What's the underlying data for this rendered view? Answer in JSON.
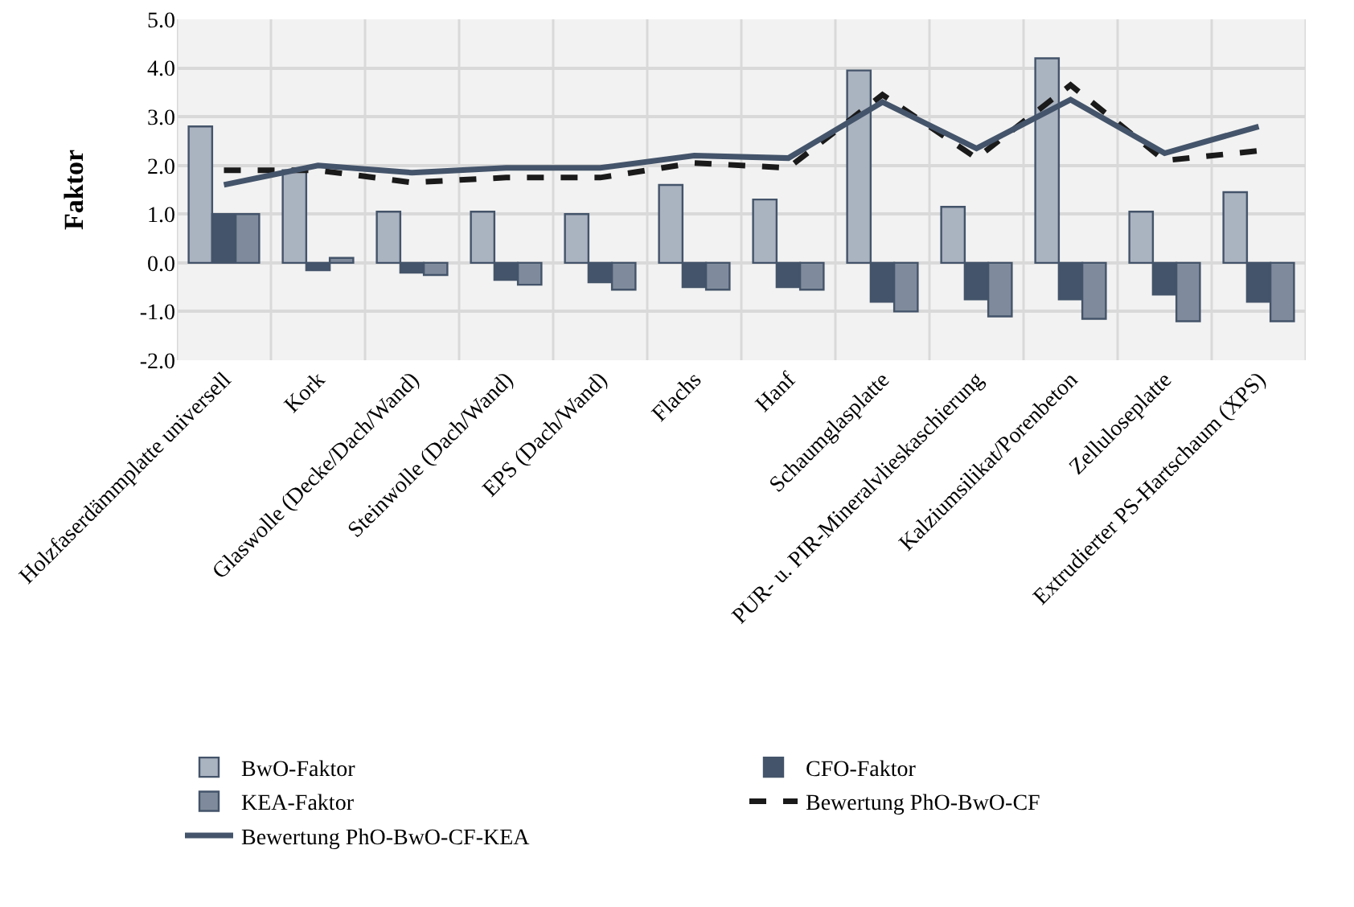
{
  "chart_data": {
    "type": "bar",
    "ylabel": "Faktor",
    "categories": [
      "Holzfaserdämmplatte universell",
      "Kork",
      "Glaswolle (Decke/Dach/Wand)",
      "Steinwolle (Dach/Wand)",
      "EPS (Dach/Wand)",
      "Flachs",
      "Hanf",
      "Schaumglasplatte",
      "PUR- u. PIR-Mineralvlieskaschierung",
      "Kalziumsilikat/Porenbeton",
      "Zelluloseplatte",
      "Extrudierter PS-Hartschaum (XPS)"
    ],
    "series": [
      {
        "name": "BwO-Faktor",
        "color": "#aab3c0",
        "values": [
          2.8,
          1.9,
          1.05,
          1.05,
          1.0,
          1.6,
          1.3,
          3.95,
          1.15,
          4.2,
          1.05,
          1.45
        ]
      },
      {
        "name": "CFO-Faktor",
        "color": "#44546a",
        "values": [
          1.0,
          -0.15,
          -0.2,
          -0.35,
          -0.4,
          -0.5,
          -0.5,
          -0.8,
          -0.75,
          -0.75,
          -0.65,
          -0.8
        ]
      },
      {
        "name": "KEA-Faktor",
        "color": "#7f8b9c",
        "values": [
          1.0,
          0.1,
          -0.25,
          -0.45,
          -0.55,
          -0.55,
          -0.55,
          -1.0,
          -1.1,
          -1.15,
          -1.2,
          -1.2
        ]
      },
      {
        "name": "Bewertung PhO-BwO-CF",
        "type": "line",
        "color": "#1a1a1a",
        "line_style": "dashed",
        "values": [
          1.9,
          1.9,
          1.65,
          1.75,
          1.75,
          2.05,
          1.95,
          3.45,
          2.15,
          3.65,
          2.1,
          2.3
        ]
      },
      {
        "name": "Bewertung PhO-BwO-CF-KEA",
        "type": "line",
        "color": "#44546a",
        "line_style": "solid",
        "values": [
          1.6,
          2.0,
          1.85,
          1.95,
          1.95,
          2.2,
          2.15,
          3.3,
          2.35,
          3.35,
          2.25,
          2.8
        ]
      }
    ],
    "ylim": [
      -2,
      5
    ],
    "yticks": [
      {
        "value": -2,
        "label": "-2.0"
      },
      {
        "value": -1,
        "label": "-1.0"
      },
      {
        "value": 0,
        "label": "0.0"
      },
      {
        "value": 1,
        "label": "1.0"
      },
      {
        "value": 2,
        "label": "2.0"
      },
      {
        "value": 3,
        "label": "3.0"
      },
      {
        "value": 4,
        "label": "4.0"
      },
      {
        "value": 5,
        "label": "5.0"
      }
    ],
    "grid": true,
    "legend": "bottom",
    "marker": "none"
  }
}
